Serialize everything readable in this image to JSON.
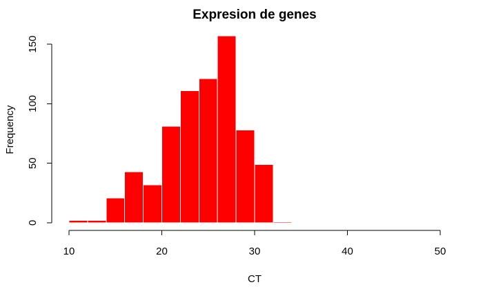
{
  "chart_data": {
    "type": "bar",
    "title": "Expresion de genes",
    "xlabel": "CT",
    "ylabel": "Frequency",
    "bin_edges": [
      10,
      12,
      14,
      16,
      18,
      20,
      22,
      24,
      26,
      28,
      30,
      32,
      34
    ],
    "values": [
      2,
      2,
      21,
      43,
      32,
      81,
      111,
      121,
      157,
      78,
      49,
      1
    ],
    "xlim": [
      10,
      50
    ],
    "ylim": [
      0,
      157
    ],
    "x_ticks": [
      10,
      20,
      30,
      40,
      50
    ],
    "y_ticks": [
      0,
      50,
      100,
      150
    ],
    "bar_color": "#ff0000",
    "border_color": "#ffffff",
    "grid": false
  }
}
